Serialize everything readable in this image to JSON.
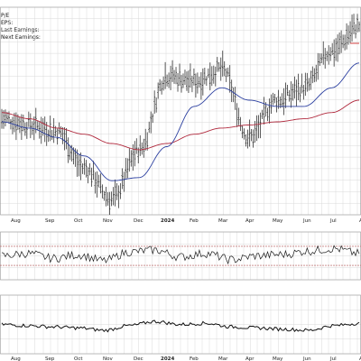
{
  "info": {
    "pe_label": "P/E",
    "eps_label": "EPS:",
    "last_earnings_label": "Last Earnings:",
    "next_earnings_label": "Next Earnings:"
  },
  "colors": {
    "price": "#1a1a1a",
    "ma_fast": "#2b3fa0",
    "ma_slow": "#b0283c",
    "indicator": "#1a1a1a",
    "lower_line": "#111111",
    "grid": "#d9d9d9",
    "reference_line": "#b05050",
    "highlight": "#d04040"
  },
  "x_axis": {
    "ticks": [
      {
        "label": "Aug",
        "bold": false
      },
      {
        "label": "Sep",
        "bold": false
      },
      {
        "label": "Oct",
        "bold": false
      },
      {
        "label": "Nov",
        "bold": false
      },
      {
        "label": "Dec",
        "bold": false
      },
      {
        "label": "2024",
        "bold": true
      },
      {
        "label": "Feb",
        "bold": false
      },
      {
        "label": "Mar",
        "bold": false
      },
      {
        "label": "Apr",
        "bold": false
      },
      {
        "label": "May",
        "bold": false
      },
      {
        "label": "Jun",
        "bold": false
      },
      {
        "label": "Jul",
        "bold": false
      },
      {
        "label": "Au",
        "bold": false
      }
    ]
  },
  "chart_data": [
    {
      "type": "line",
      "panel": "price",
      "x": [
        "Jul 2023",
        "Aug 2023",
        "Sep 2023",
        "Oct 2023",
        "Nov 2023",
        "Dec 2023",
        "Jan 2024",
        "Feb 2024",
        "Mar 2024",
        "Apr 2024",
        "May 2024",
        "Jun 2024",
        "Jul 2024",
        "Aug 2024"
      ],
      "series": [
        {
          "role": "price",
          "values": [
            56,
            54,
            52,
            40,
            30,
            46,
            70,
            68,
            72,
            50,
            62,
            66,
            78,
            86
          ]
        },
        {
          "role": "ma_fast",
          "values": [
            55,
            53,
            50,
            44,
            36,
            37,
            47,
            60,
            66,
            62,
            60,
            60,
            66,
            74
          ]
        },
        {
          "role": "ma_slow",
          "values": [
            58,
            56,
            53,
            51,
            48,
            46,
            48,
            51,
            53,
            54,
            55,
            56,
            58,
            62
          ]
        }
      ],
      "grid": true
    },
    {
      "type": "line",
      "panel": "indicator",
      "series": [
        {
          "role": "indicator",
          "values": [
            50,
            55,
            45,
            52,
            40,
            58,
            62,
            48,
            55,
            42,
            50,
            53,
            60,
            65,
            55
          ]
        }
      ],
      "reference_lines": [
        30,
        70
      ],
      "grid": true
    },
    {
      "type": "line",
      "panel": "lower",
      "series": [
        {
          "role": "lower_line",
          "values": [
            50,
            48,
            46,
            44,
            40,
            48,
            55,
            50,
            52,
            46,
            44,
            42,
            40,
            48,
            52
          ]
        }
      ],
      "grid": true
    }
  ]
}
